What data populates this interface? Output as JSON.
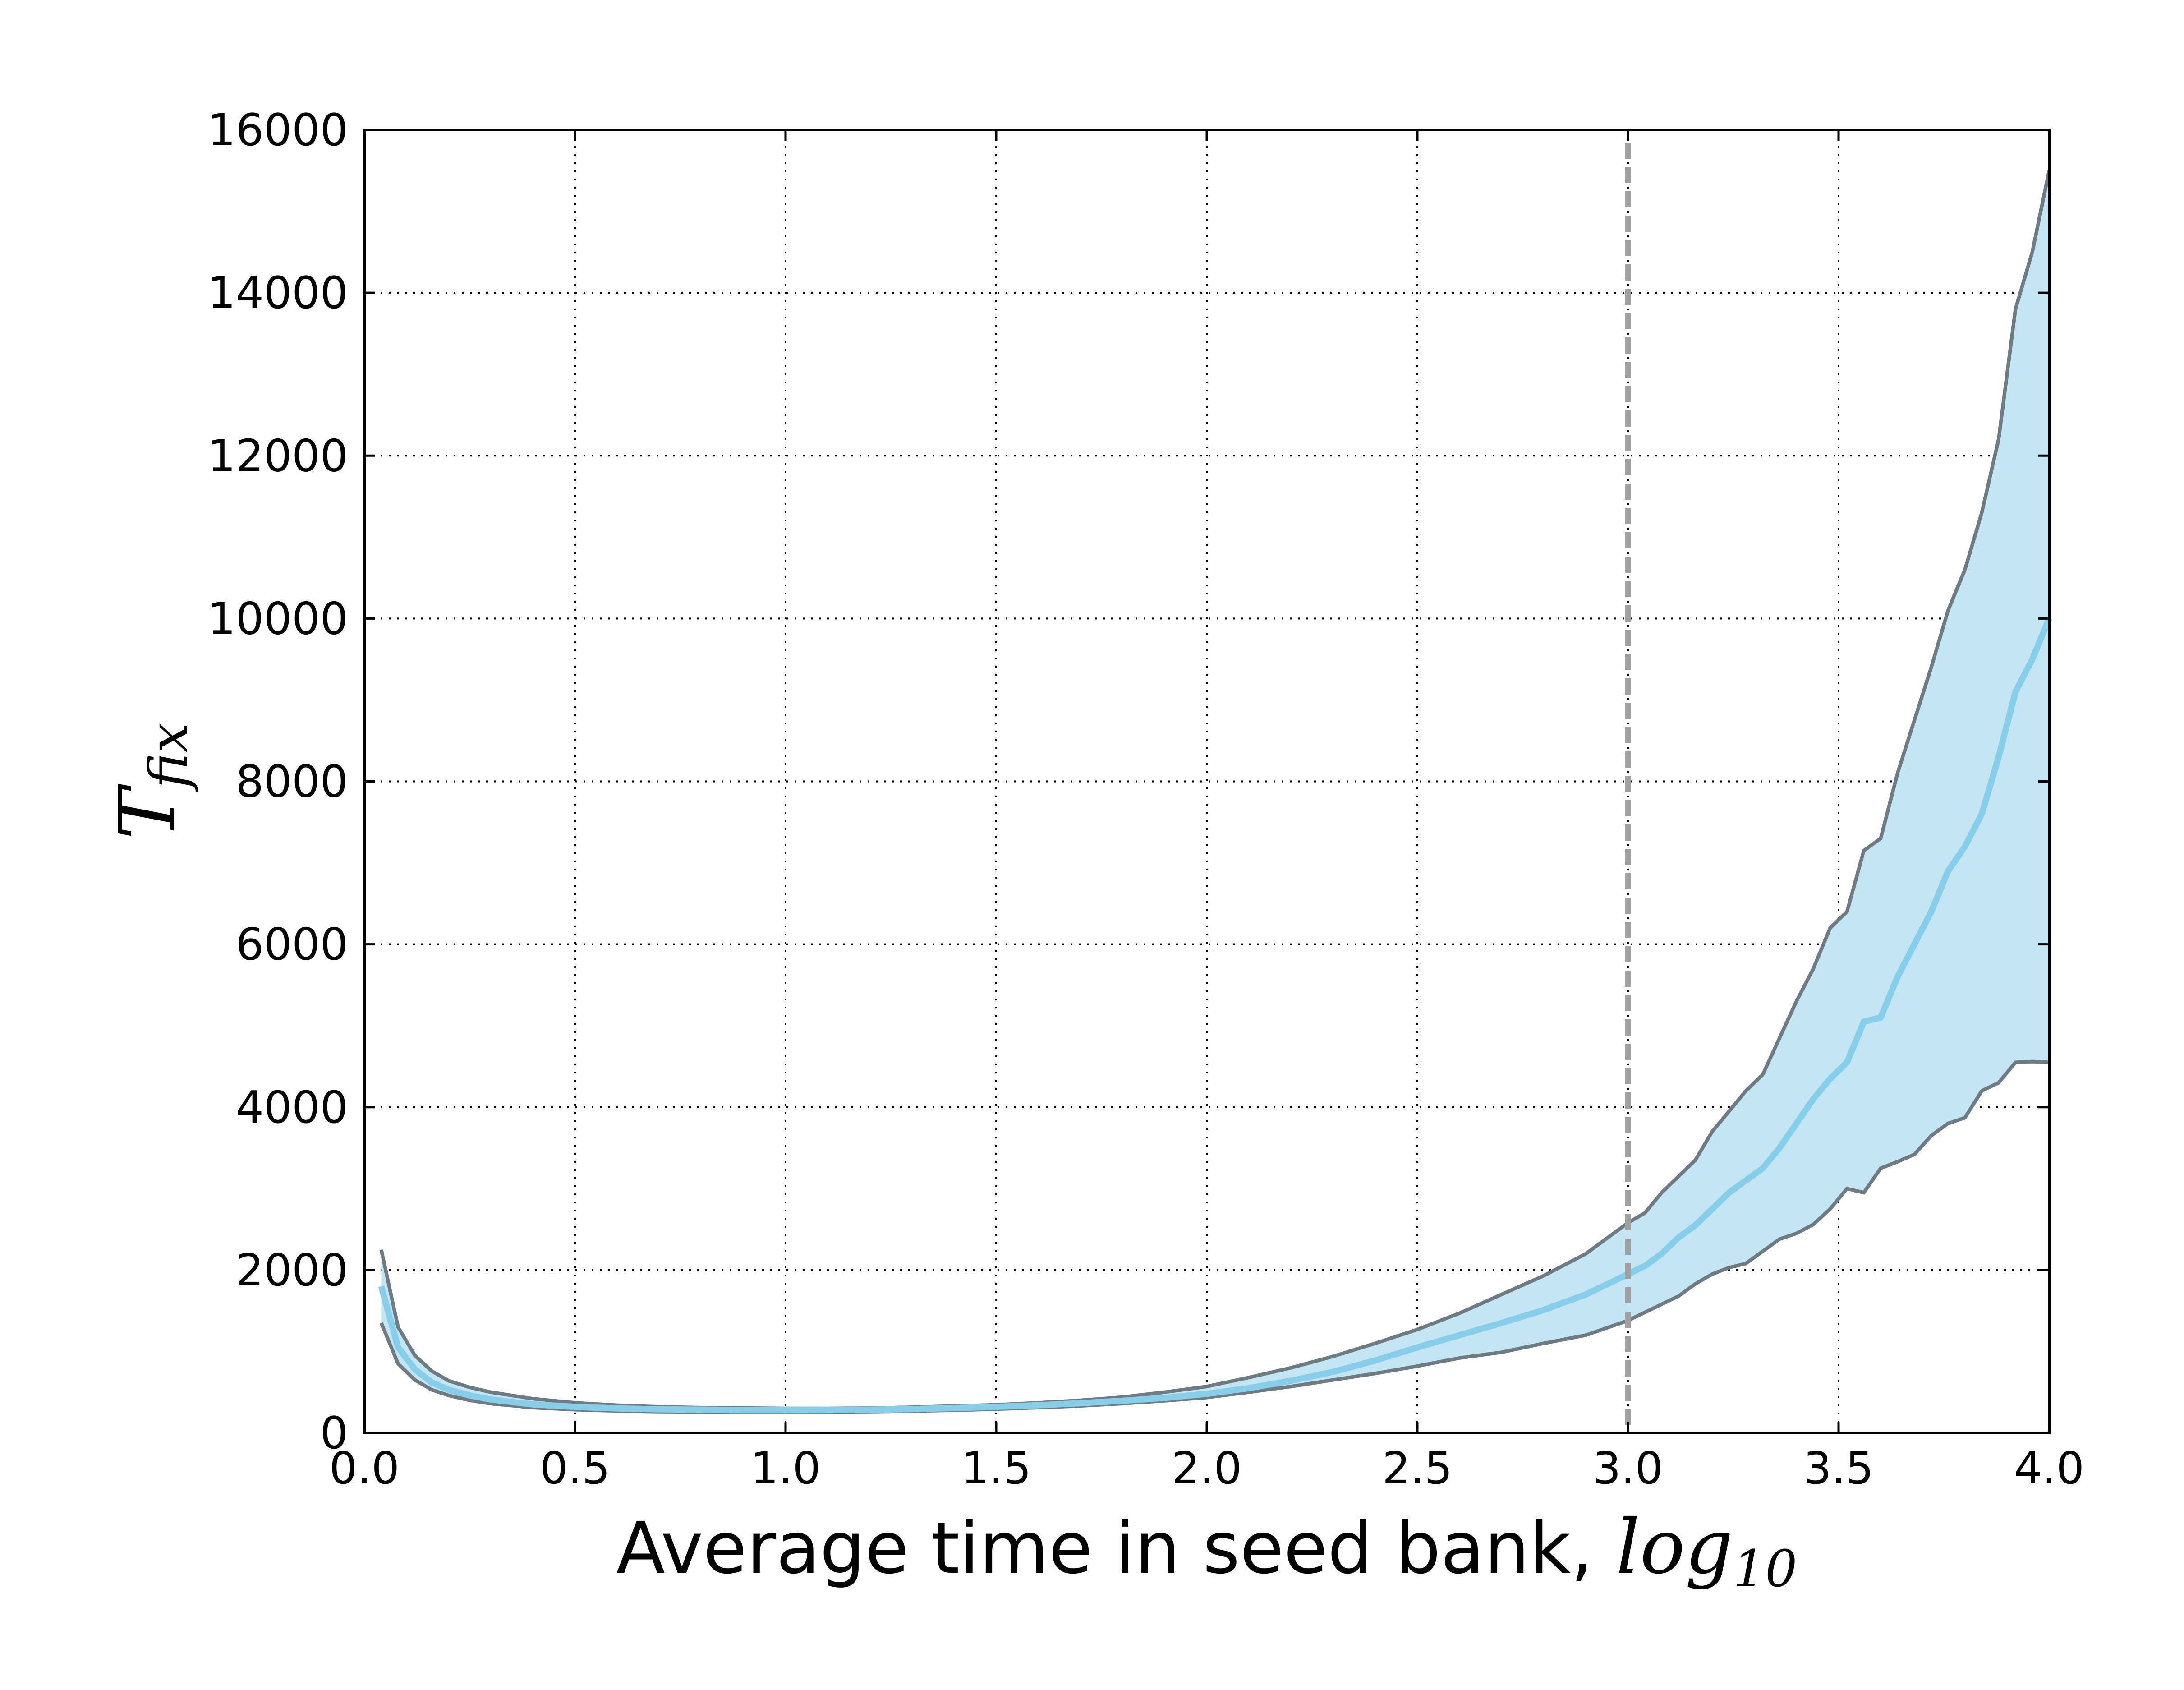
{
  "chart_data": {
    "type": "line",
    "xlabel": "Average time in seed bank, ",
    "xlabel_math": "log",
    "xlabel_math_sub": "10",
    "ylabel_math": "T",
    "ylabel_math_sub": "fix",
    "xlim": [
      0.0,
      4.0
    ],
    "ylim": [
      0,
      16000
    ],
    "x_ticks": [
      "0.0",
      "0.5",
      "1.0",
      "1.5",
      "2.0",
      "2.5",
      "3.0",
      "3.5",
      "4.0"
    ],
    "y_ticks": [
      "0",
      "2000",
      "4000",
      "6000",
      "8000",
      "10000",
      "12000",
      "14000",
      "16000"
    ],
    "grid": true,
    "vertical_reference_x": 3.0,
    "colors": {
      "mean_line": "#87ceeb",
      "band_fill": "#c4e6f4",
      "band_edge": "#6e7b83",
      "reference_line": "#a0a0a0"
    },
    "series": [
      {
        "role": "mean",
        "x": [
          0.04,
          0.08,
          0.12,
          0.16,
          0.2,
          0.25,
          0.3,
          0.4,
          0.5,
          0.6,
          0.7,
          0.8,
          0.9,
          1.0,
          1.1,
          1.2,
          1.3,
          1.4,
          1.5,
          1.6,
          1.7,
          1.8,
          1.9,
          2.0,
          2.1,
          2.2,
          2.3,
          2.4,
          2.5,
          2.6,
          2.7,
          2.8,
          2.9,
          3.0,
          3.04,
          3.08,
          3.12,
          3.16,
          3.2,
          3.24,
          3.28,
          3.32,
          3.36,
          3.4,
          3.44,
          3.48,
          3.52,
          3.56,
          3.6,
          3.64,
          3.68,
          3.72,
          3.76,
          3.8,
          3.84,
          3.88,
          3.92,
          3.96,
          4.0
        ],
        "y": [
          1800,
          1050,
          780,
          620,
          530,
          460,
          410,
          350,
          320,
          300,
          290,
          285,
          280,
          280,
          282,
          285,
          292,
          305,
          320,
          340,
          365,
          395,
          430,
          480,
          550,
          640,
          750,
          890,
          1050,
          1200,
          1350,
          1510,
          1700,
          1950,
          2050,
          2200,
          2400,
          2550,
          2750,
          2950,
          3100,
          3250,
          3500,
          3800,
          4100,
          4350,
          4550,
          5050,
          5100,
          5600,
          6000,
          6400,
          6900,
          7200,
          7600,
          8300,
          9100,
          9500,
          10000
        ]
      },
      {
        "role": "upper",
        "x": [
          0.04,
          0.08,
          0.12,
          0.16,
          0.2,
          0.25,
          0.3,
          0.4,
          0.5,
          0.6,
          0.7,
          0.8,
          0.9,
          1.0,
          1.1,
          1.2,
          1.3,
          1.4,
          1.5,
          1.6,
          1.7,
          1.8,
          1.9,
          2.0,
          2.1,
          2.2,
          2.3,
          2.4,
          2.5,
          2.6,
          2.7,
          2.8,
          2.9,
          3.0,
          3.04,
          3.08,
          3.12,
          3.16,
          3.2,
          3.24,
          3.28,
          3.32,
          3.36,
          3.4,
          3.44,
          3.48,
          3.52,
          3.56,
          3.6,
          3.64,
          3.68,
          3.72,
          3.76,
          3.8,
          3.84,
          3.88,
          3.92,
          3.96,
          4.0
        ],
        "y": [
          2250,
          1300,
          950,
          760,
          640,
          560,
          500,
          420,
          370,
          340,
          320,
          310,
          305,
          300,
          300,
          305,
          315,
          330,
          345,
          370,
          400,
          440,
          500,
          570,
          680,
          800,
          940,
          1100,
          1270,
          1470,
          1700,
          1930,
          2200,
          2580,
          2700,
          2950,
          3150,
          3350,
          3700,
          3950,
          4200,
          4400,
          4850,
          5300,
          5700,
          6200,
          6400,
          7150,
          7300,
          8100,
          8750,
          9400,
          10100,
          10600,
          11300,
          12200,
          13800,
          14500,
          15500
        ]
      },
      {
        "role": "lower",
        "x": [
          0.04,
          0.08,
          0.12,
          0.16,
          0.2,
          0.25,
          0.3,
          0.4,
          0.5,
          0.6,
          0.7,
          0.8,
          0.9,
          1.0,
          1.1,
          1.2,
          1.3,
          1.4,
          1.5,
          1.6,
          1.7,
          1.8,
          1.9,
          2.0,
          2.1,
          2.2,
          2.3,
          2.4,
          2.5,
          2.6,
          2.7,
          2.8,
          2.9,
          3.0,
          3.04,
          3.08,
          3.12,
          3.16,
          3.2,
          3.24,
          3.28,
          3.32,
          3.36,
          3.4,
          3.44,
          3.48,
          3.52,
          3.56,
          3.6,
          3.64,
          3.68,
          3.72,
          3.76,
          3.8,
          3.84,
          3.88,
          3.92,
          3.96,
          4.0
        ],
        "y": [
          1350,
          850,
          650,
          530,
          460,
          400,
          360,
          310,
          285,
          270,
          262,
          258,
          255,
          255,
          258,
          262,
          268,
          278,
          292,
          310,
          332,
          360,
          395,
          435,
          500,
          570,
          650,
          730,
          820,
          920,
          990,
          1100,
          1200,
          1380,
          1480,
          1580,
          1680,
          1830,
          1950,
          2030,
          2080,
          2230,
          2380,
          2450,
          2560,
          2750,
          3000,
          2950,
          3250,
          3330,
          3420,
          3650,
          3800,
          3870,
          4200,
          4300,
          4550,
          4560,
          4550
        ]
      }
    ]
  }
}
